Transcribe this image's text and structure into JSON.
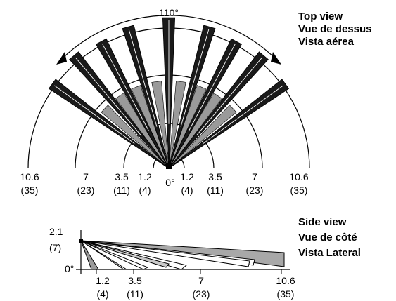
{
  "angle_label": "110°",
  "top_view": {
    "titles": [
      "Top view",
      "Vue de dessus",
      "Vista aérea"
    ],
    "origin_label": "0°",
    "range_labels": [
      {
        "m": "10.6",
        "ft": "(35)"
      },
      {
        "m": "7",
        "ft": "(23)"
      },
      {
        "m": "3.5",
        "ft": "(11)"
      },
      {
        "m": "1.2",
        "ft": "(4)"
      },
      {
        "m": "1.2",
        "ft": "(4)"
      },
      {
        "m": "3.5",
        "ft": "(11)"
      },
      {
        "m": "7",
        "ft": "(23)"
      },
      {
        "m": "10.6",
        "ft": "(35)"
      }
    ]
  },
  "side_view": {
    "titles": [
      "Side view",
      "Vue de côté",
      "Vista Lateral"
    ],
    "height_label": {
      "m": "2.1",
      "ft": "(7)"
    },
    "origin_label": "0°",
    "range_labels": [
      {
        "m": "1.2",
        "ft": "(4)"
      },
      {
        "m": "3.5",
        "ft": "(11)"
      },
      {
        "m": "7",
        "ft": "(23)"
      },
      {
        "m": "10.6",
        "ft": "(35)"
      }
    ]
  }
}
